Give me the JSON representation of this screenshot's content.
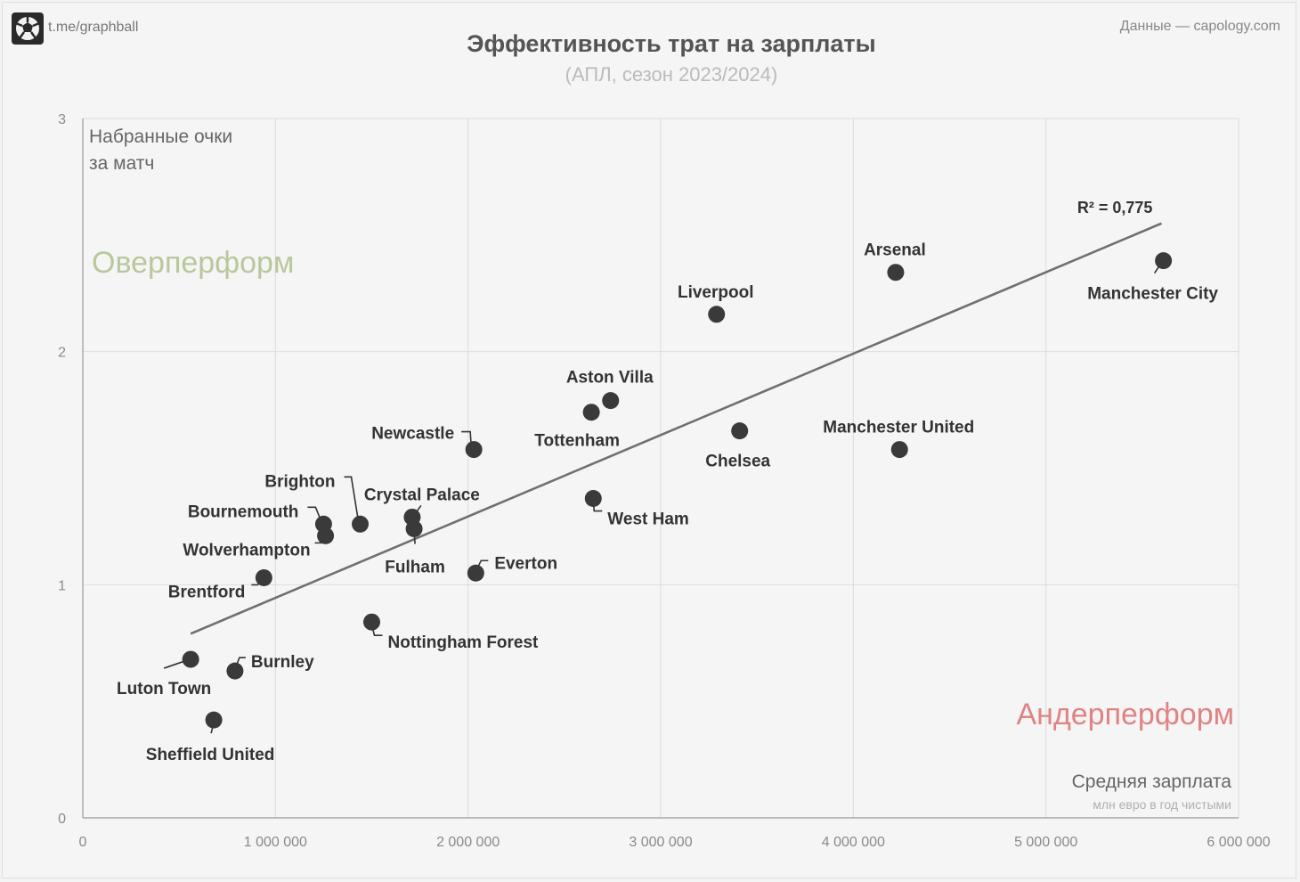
{
  "header": {
    "channel": "t.me/graphball",
    "source": "Данные — capology.com",
    "title": "Эффективность трат на зарплаты",
    "subtitle": "(АПЛ, сезон 2023/2024)"
  },
  "colors": {
    "point": "#3a3a3a",
    "trend": "#707070",
    "over": "#b9c79c",
    "under": "#e08383",
    "grid": "#dcdcdc"
  },
  "chart_data": {
    "type": "scatter",
    "title": "Эффективность трат на зарплаты",
    "subtitle": "(АПЛ, сезон 2023/2024)",
    "ylabel_lines": [
      "Набранные очки",
      "за матч"
    ],
    "xlabel": "Средняя зарплата",
    "xlabel_sub": "млн евро в год чистыми",
    "xlim": [
      0,
      6000000
    ],
    "ylim": [
      0,
      3
    ],
    "xticks": [
      0,
      1000000,
      2000000,
      3000000,
      4000000,
      5000000,
      6000000
    ],
    "xtick_labels": [
      "0",
      "1 000 000",
      "2 000 000",
      "3 000 000",
      "4 000 000",
      "5 000 000",
      "6 000 000"
    ],
    "yticks": [
      0,
      1,
      2,
      3
    ],
    "ytick_labels": [
      "0",
      "1",
      "2",
      "3"
    ],
    "grid": true,
    "zones": {
      "over": "Оверперформ",
      "under": "Андерперформ"
    },
    "trendline": {
      "x": [
        560000,
        5600000
      ],
      "y": [
        0.79,
        2.55
      ],
      "label": "R² = 0,775"
    },
    "points": [
      {
        "name": "Manchester City",
        "x": 5610000,
        "y": 2.39
      },
      {
        "name": "Arsenal",
        "x": 4220000,
        "y": 2.34
      },
      {
        "name": "Liverpool",
        "x": 3290000,
        "y": 2.16
      },
      {
        "name": "Aston Villa",
        "x": 2740000,
        "y": 1.79
      },
      {
        "name": "Tottenham",
        "x": 2640000,
        "y": 1.74
      },
      {
        "name": "Newcastle",
        "x": 2030000,
        "y": 1.58
      },
      {
        "name": "Chelsea",
        "x": 3410000,
        "y": 1.66
      },
      {
        "name": "Manchester United",
        "x": 4240000,
        "y": 1.58
      },
      {
        "name": "West Ham",
        "x": 2650000,
        "y": 1.37
      },
      {
        "name": "Crystal Palace",
        "x": 1710000,
        "y": 1.29
      },
      {
        "name": "Fulham",
        "x": 1720000,
        "y": 1.24
      },
      {
        "name": "Brighton",
        "x": 1440000,
        "y": 1.26
      },
      {
        "name": "Bournemouth",
        "x": 1250000,
        "y": 1.26
      },
      {
        "name": "Wolverhampton",
        "x": 1260000,
        "y": 1.21
      },
      {
        "name": "Everton",
        "x": 2040000,
        "y": 1.05
      },
      {
        "name": "Brentford",
        "x": 940000,
        "y": 1.03
      },
      {
        "name": "Nottingham Forest",
        "x": 1500000,
        "y": 0.84
      },
      {
        "name": "Burnley",
        "x": 790000,
        "y": 0.63
      },
      {
        "name": "Luton Town",
        "x": 560000,
        "y": 0.68
      },
      {
        "name": "Sheffield United",
        "x": 680000,
        "y": 0.42
      }
    ]
  }
}
